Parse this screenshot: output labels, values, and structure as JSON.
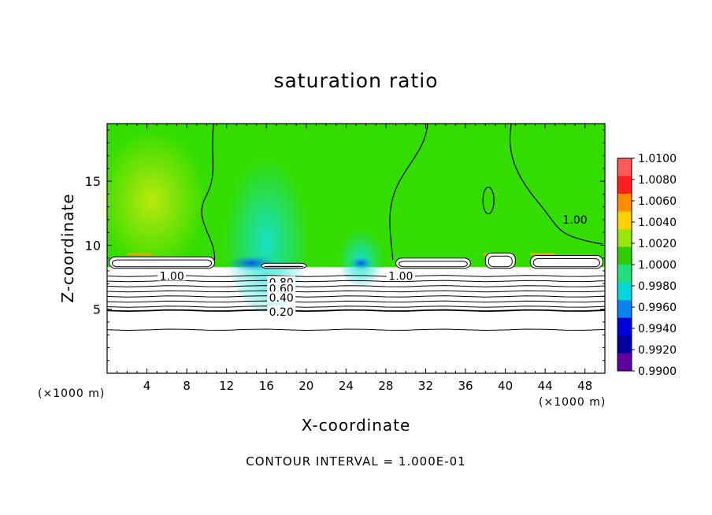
{
  "chart_data": {
    "type": "heatmap",
    "title": "saturation ratio",
    "xlabel": "X-coordinate",
    "ylabel": "Z-coordinate",
    "x_unit_label": "(×1000 m)",
    "y_unit_label": "(×1000 m)",
    "xlim": [
      0,
      50
    ],
    "ylim": [
      0,
      19.5
    ],
    "x_ticks": [
      4,
      8,
      12,
      16,
      20,
      24,
      28,
      32,
      36,
      40,
      44,
      48
    ],
    "y_ticks": [
      5,
      10,
      15
    ],
    "colorbar": {
      "range": [
        0.99,
        1.01
      ],
      "labels": [
        "1.0100",
        "1.0080",
        "1.0060",
        "1.0040",
        "1.0020",
        "1.0000",
        "0.9980",
        "0.9960",
        "0.9940",
        "0.9920",
        "0.9900"
      ],
      "colors": [
        "#ff5a5a",
        "#ff1e1e",
        "#ff8c00",
        "#ffd200",
        "#9be60a",
        "#33cc00",
        "#1fe07a",
        "#00d7d7",
        "#0a82f0",
        "#0000dc",
        "#0000a0",
        "#6000a0"
      ]
    },
    "contour_labels": [
      {
        "text": "1.00",
        "x": 6.5,
        "y": 7.6
      },
      {
        "text": "1.00",
        "x": 29.5,
        "y": 7.6
      },
      {
        "text": "1.00",
        "x": 47,
        "y": 12.0
      },
      {
        "text": "0.80",
        "x": 17.5,
        "y": 7.1
      },
      {
        "text": "0.60",
        "x": 17.5,
        "y": 6.6
      },
      {
        "text": "0.40",
        "x": 17.5,
        "y": 5.9
      },
      {
        "text": "0.20",
        "x": 17.5,
        "y": 4.8
      }
    ],
    "contour_levels": [
      {
        "level": 0.9,
        "y": 7.6
      },
      {
        "level": 0.8,
        "y": 7.2
      },
      {
        "level": 0.7,
        "y": 6.8
      },
      {
        "level": 0.6,
        "y": 6.4
      },
      {
        "level": 0.5,
        "y": 6.0
      },
      {
        "level": 0.4,
        "y": 5.6
      },
      {
        "level": 0.3,
        "y": 5.2
      },
      {
        "level": 0.2,
        "y": 4.9
      },
      {
        "level": 0.1,
        "y": 3.4
      }
    ],
    "contour_interval": "CONTOUR INTERVAL = 1.000E-01"
  }
}
